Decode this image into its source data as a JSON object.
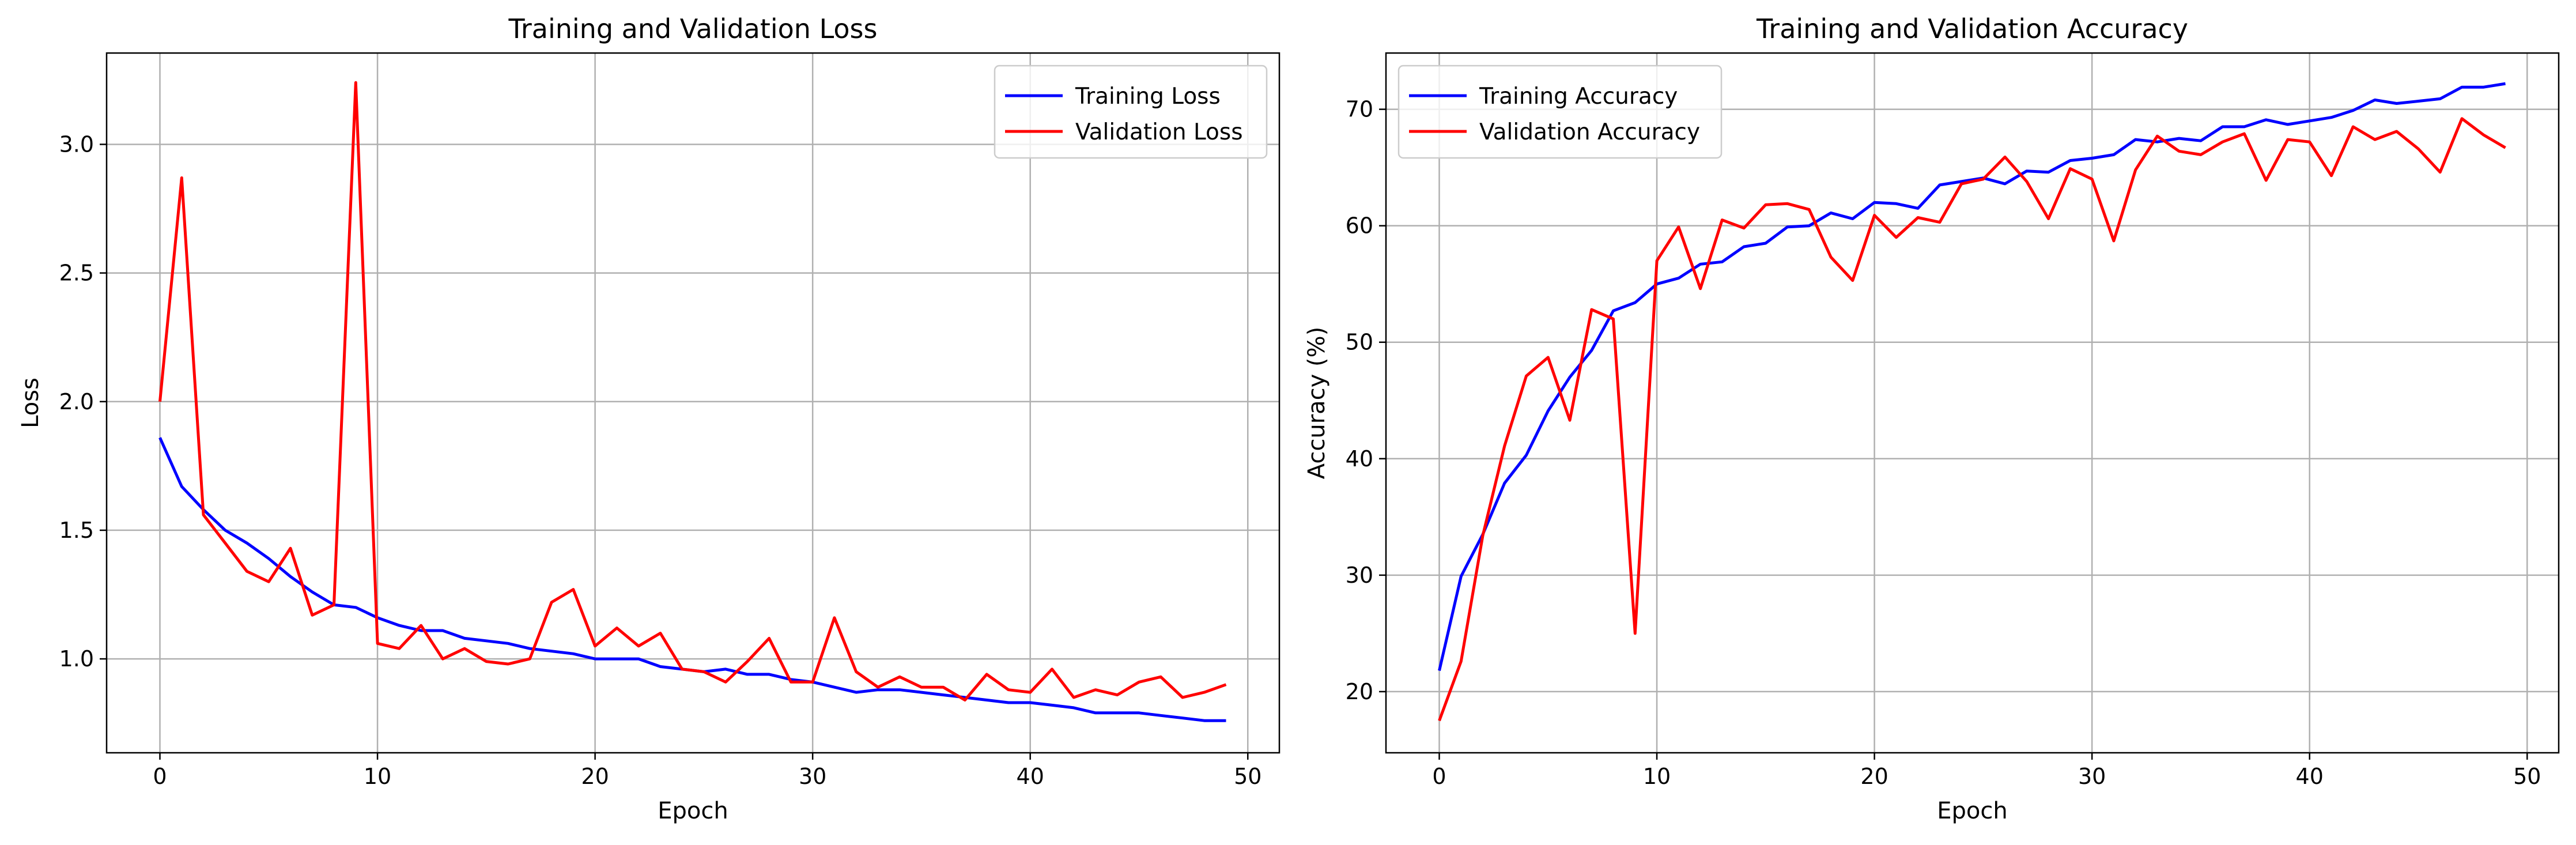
{
  "colors": {
    "training": "#0000ff",
    "validation": "#ff0000",
    "grid": "#b0b0b0"
  },
  "chart_data": [
    {
      "type": "line",
      "title": "Training and Validation Loss",
      "xlabel": "Epoch",
      "ylabel": "Loss",
      "xlim": [
        -2.45,
        51.45
      ],
      "ylim": [
        0.635,
        3.355
      ],
      "xticks": [
        0,
        10,
        20,
        30,
        40,
        50
      ],
      "xtick_labels": [
        "0",
        "10",
        "20",
        "30",
        "40",
        "50"
      ],
      "yticks": [
        1.0,
        1.5,
        2.0,
        2.5,
        3.0
      ],
      "ytick_labels": [
        "1.0",
        "1.5",
        "2.0",
        "2.5",
        "3.0"
      ],
      "grid": true,
      "legend": "top-right",
      "x": [
        0,
        1,
        2,
        3,
        4,
        5,
        6,
        7,
        8,
        9,
        10,
        11,
        12,
        13,
        14,
        15,
        16,
        17,
        18,
        19,
        20,
        21,
        22,
        23,
        24,
        25,
        26,
        27,
        28,
        29,
        30,
        31,
        32,
        33,
        34,
        35,
        36,
        37,
        38,
        39,
        40,
        41,
        42,
        43,
        44,
        45,
        46,
        47,
        48,
        49
      ],
      "series": [
        {
          "name": "Training Loss",
          "color": "#0000ff",
          "values": [
            1.86,
            1.67,
            1.58,
            1.5,
            1.45,
            1.39,
            1.32,
            1.26,
            1.21,
            1.2,
            1.16,
            1.13,
            1.11,
            1.11,
            1.08,
            1.07,
            1.06,
            1.04,
            1.03,
            1.02,
            1.0,
            1.0,
            1.0,
            0.97,
            0.96,
            0.95,
            0.96,
            0.94,
            0.94,
            0.92,
            0.91,
            0.89,
            0.87,
            0.88,
            0.88,
            0.87,
            0.86,
            0.85,
            0.84,
            0.83,
            0.83,
            0.82,
            0.81,
            0.79,
            0.79,
            0.79,
            0.78,
            0.77,
            0.76,
            0.76
          ]
        },
        {
          "name": "Validation Loss",
          "color": "#ff0000",
          "values": [
            2.0,
            2.87,
            1.56,
            1.45,
            1.34,
            1.3,
            1.43,
            1.17,
            1.21,
            3.24,
            1.06,
            1.04,
            1.13,
            1.0,
            1.04,
            0.99,
            0.98,
            1.0,
            1.22,
            1.27,
            1.05,
            1.12,
            1.05,
            1.1,
            0.96,
            0.95,
            0.91,
            0.99,
            1.08,
            0.91,
            0.91,
            1.16,
            0.95,
            0.89,
            0.93,
            0.89,
            0.89,
            0.84,
            0.94,
            0.88,
            0.87,
            0.96,
            0.85,
            0.88,
            0.86,
            0.91,
            0.93,
            0.85,
            0.87,
            0.9
          ]
        }
      ]
    },
    {
      "type": "line",
      "title": "Training and Validation Accuracy",
      "xlabel": "Epoch",
      "ylabel": "Accuracy (%)",
      "xlim": [
        -2.45,
        51.45
      ],
      "ylim": [
        14.75,
        74.83
      ],
      "xticks": [
        0,
        10,
        20,
        30,
        40,
        50
      ],
      "xtick_labels": [
        "0",
        "10",
        "20",
        "30",
        "40",
        "50"
      ],
      "yticks": [
        20,
        30,
        40,
        50,
        60,
        70
      ],
      "ytick_labels": [
        "20",
        "30",
        "40",
        "50",
        "60",
        "70"
      ],
      "grid": true,
      "legend": "top-left",
      "x": [
        0,
        1,
        2,
        3,
        4,
        5,
        6,
        7,
        8,
        9,
        10,
        11,
        12,
        13,
        14,
        15,
        16,
        17,
        18,
        19,
        20,
        21,
        22,
        23,
        24,
        25,
        26,
        27,
        28,
        29,
        30,
        31,
        32,
        33,
        34,
        35,
        36,
        37,
        38,
        39,
        40,
        41,
        42,
        43,
        44,
        45,
        46,
        47,
        48,
        49
      ],
      "series": [
        {
          "name": "Training Accuracy",
          "color": "#0000ff",
          "values": [
            21.8,
            29.9,
            33.5,
            37.9,
            40.3,
            44.1,
            47.0,
            49.3,
            52.7,
            53.4,
            55.0,
            55.5,
            56.7,
            56.9,
            58.2,
            58.5,
            59.9,
            60.0,
            61.1,
            60.6,
            62.0,
            61.9,
            61.5,
            63.5,
            63.8,
            64.1,
            63.6,
            64.7,
            64.6,
            65.6,
            65.8,
            66.1,
            67.4,
            67.2,
            67.5,
            67.3,
            68.5,
            68.5,
            69.1,
            68.7,
            69.0,
            69.3,
            69.9,
            70.8,
            70.5,
            70.7,
            70.9,
            71.9,
            71.9,
            72.2
          ]
        },
        {
          "name": "Validation Accuracy",
          "color": "#ff0000",
          "values": [
            17.5,
            22.6,
            33.4,
            41.1,
            47.1,
            48.7,
            43.3,
            52.8,
            52.0,
            25.0,
            57.0,
            59.9,
            54.6,
            60.5,
            59.8,
            61.8,
            61.9,
            61.4,
            57.3,
            55.3,
            60.9,
            59.0,
            60.7,
            60.3,
            63.6,
            64.0,
            65.9,
            63.8,
            60.6,
            64.9,
            64.0,
            58.7,
            64.8,
            67.7,
            66.4,
            66.1,
            67.2,
            67.9,
            63.9,
            67.4,
            67.2,
            64.3,
            68.5,
            67.4,
            68.1,
            66.6,
            64.6,
            69.2,
            67.8,
            66.7
          ]
        }
      ]
    }
  ]
}
